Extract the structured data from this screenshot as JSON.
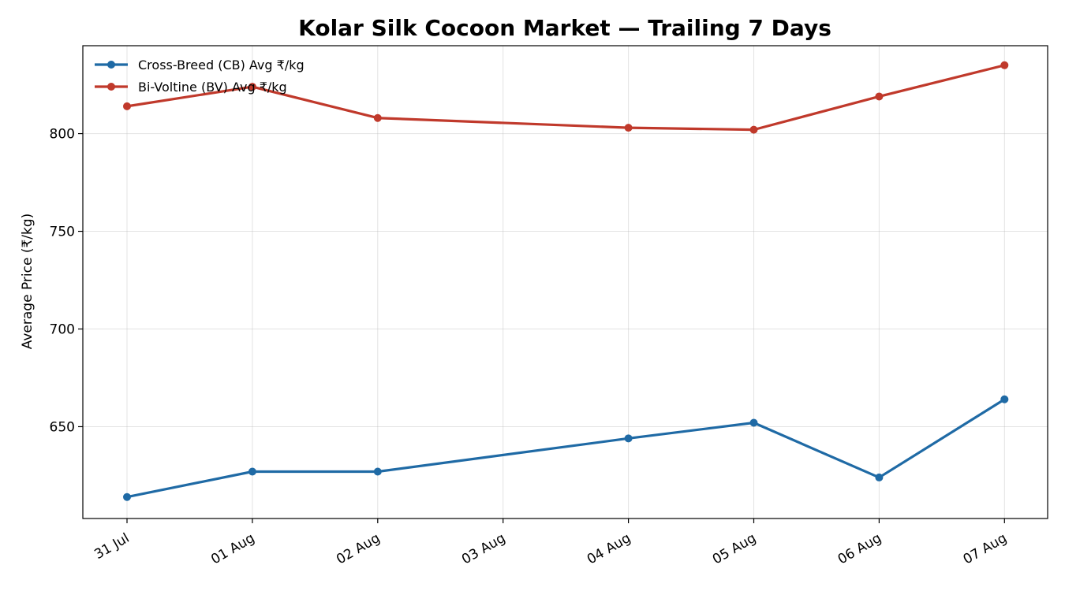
{
  "chart_data": {
    "type": "line",
    "title": "Kolar Silk Cocoon Market — Trailing 7 Days",
    "xlabel": "",
    "ylabel": "Average Price (₹/kg)",
    "x": [
      "31 Jul",
      "01 Aug",
      "02 Aug",
      "04 Aug",
      "05 Aug",
      "06 Aug",
      "07 Aug"
    ],
    "x_ticks": [
      "31 Jul",
      "01 Aug",
      "02 Aug",
      "03 Aug",
      "04 Aug",
      "05 Aug",
      "06 Aug",
      "07 Aug"
    ],
    "y_ticks": [
      650,
      700,
      750,
      800
    ],
    "ylim": [
      603,
      845
    ],
    "grid": true,
    "legend_position": "top-left",
    "series": [
      {
        "name": "Cross-Breed (CB) Avg ₹/kg",
        "color": "#1f6aa5",
        "values": [
          614,
          627,
          627,
          644,
          652,
          624,
          664
        ]
      },
      {
        "name": "Bi-Voltine (BV) Avg ₹/kg",
        "color": "#c0392b",
        "values": [
          814,
          824,
          808,
          803,
          802,
          819,
          835
        ]
      }
    ]
  }
}
